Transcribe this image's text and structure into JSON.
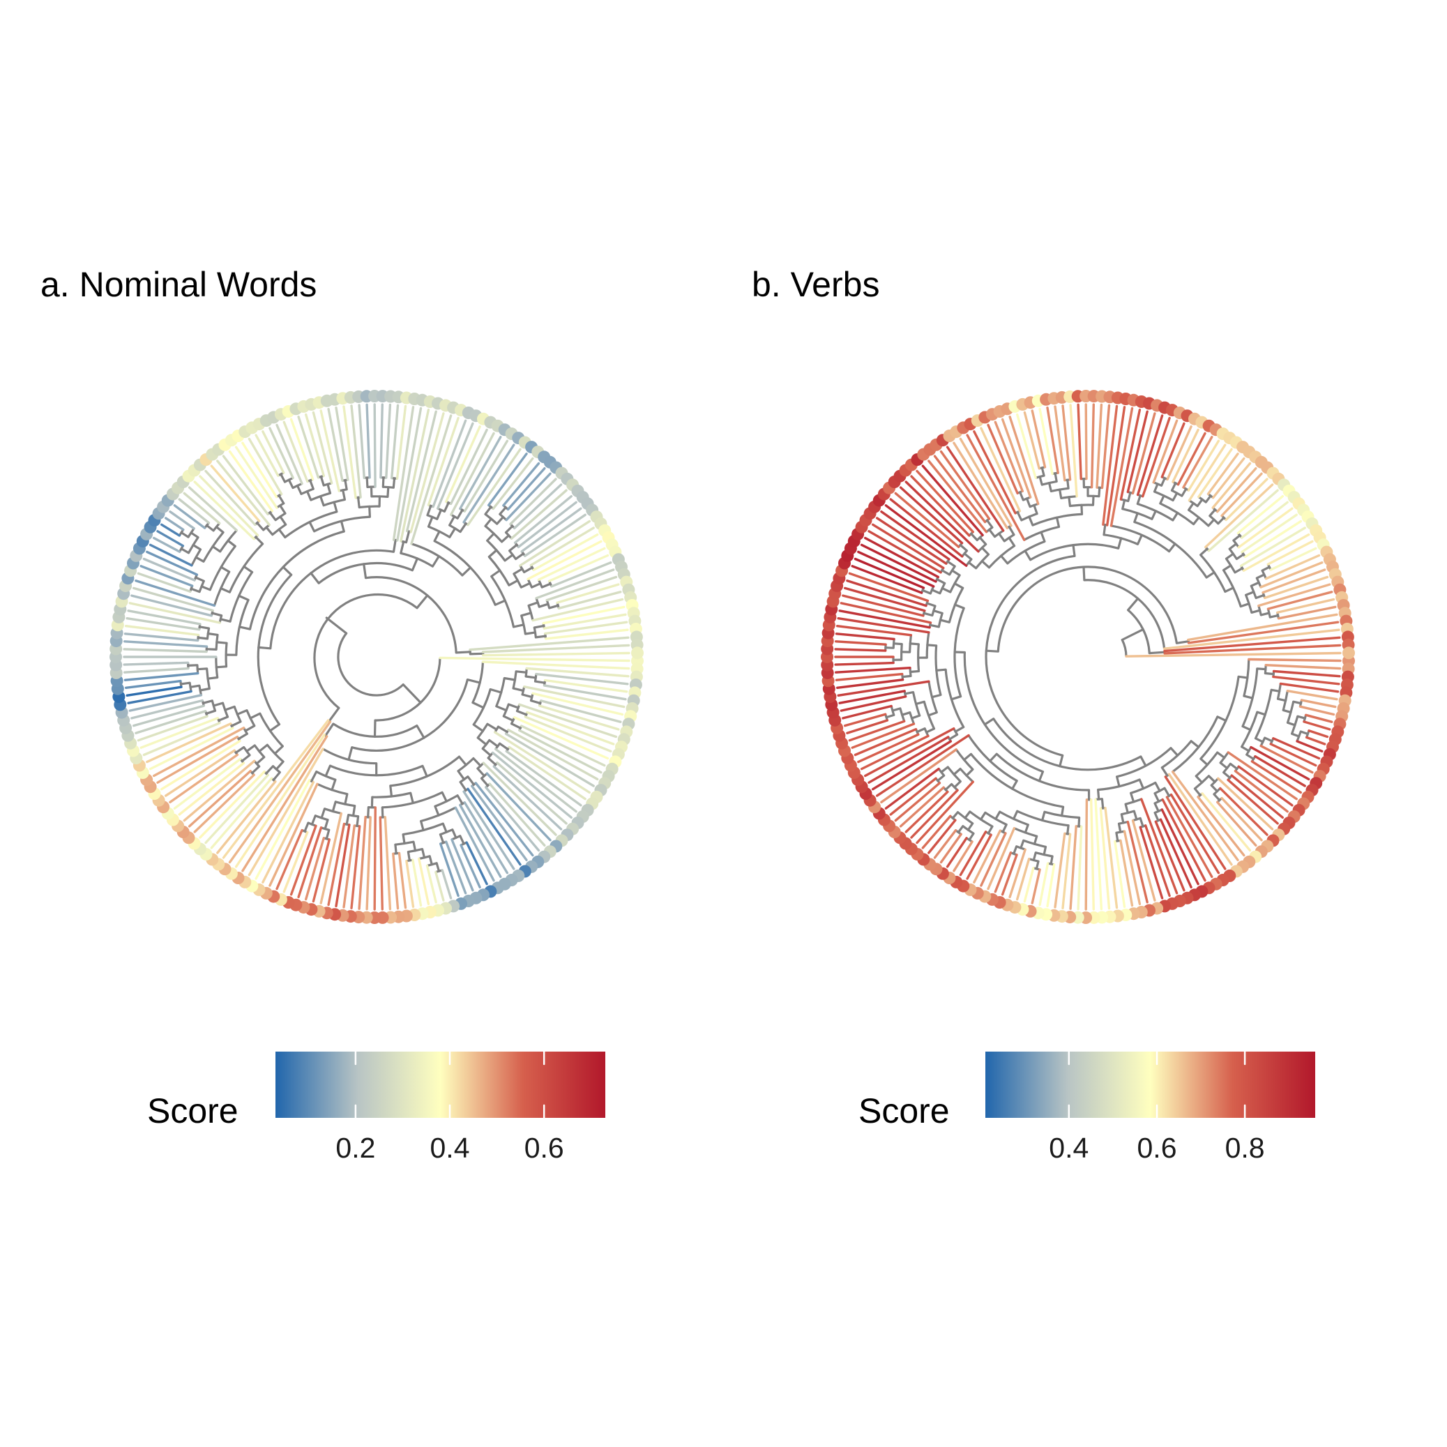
{
  "figure": {
    "background": "#ffffff",
    "branch_color": "#808080"
  },
  "chart_data": [
    {
      "type": "circular-tree",
      "title": "a. Nominal Words",
      "tips": 205,
      "seed": 17,
      "legend": {
        "title": "Score",
        "min": 0.03,
        "max": 0.73,
        "ticks": [
          0.2,
          0.4,
          0.6
        ],
        "tick_labels": [
          "0.2",
          "0.4",
          "0.6"
        ],
        "placement": "bottom"
      },
      "score_profile": [
        [
          0,
          0.38
        ],
        [
          0.08,
          0.4
        ],
        [
          0.14,
          0.22
        ],
        [
          0.18,
          0.06
        ],
        [
          0.22,
          0.55
        ],
        [
          0.28,
          0.7
        ],
        [
          0.35,
          0.5
        ],
        [
          0.42,
          0.62
        ],
        [
          0.47,
          0.1
        ],
        [
          0.52,
          0.35
        ],
        [
          0.58,
          0.12
        ],
        [
          0.63,
          0.45
        ],
        [
          0.7,
          0.4
        ],
        [
          0.74,
          0.3
        ],
        [
          0.8,
          0.38
        ],
        [
          0.86,
          0.24
        ],
        [
          0.92,
          0.4
        ],
        [
          1.0,
          0.38
        ]
      ],
      "color_stops": [
        "#2166ac",
        "#b8c4c4",
        "#ffffbf",
        "#d6604d",
        "#b2182b"
      ]
    },
    {
      "type": "circular-tree",
      "title": "b. Verbs",
      "tips": 205,
      "seed": 29,
      "legend": {
        "title": "Score",
        "min": 0.21,
        "max": 0.96,
        "ticks": [
          0.4,
          0.6,
          0.8
        ],
        "tick_labels": [
          "0.4",
          "0.6",
          "0.8"
        ],
        "placement": "bottom"
      },
      "score_profile": [
        [
          0,
          0.7
        ],
        [
          0.08,
          0.8
        ],
        [
          0.14,
          0.6
        ],
        [
          0.18,
          0.85
        ],
        [
          0.23,
          0.55
        ],
        [
          0.28,
          0.55
        ],
        [
          0.33,
          0.72
        ],
        [
          0.4,
          0.78
        ],
        [
          0.46,
          0.8
        ],
        [
          0.52,
          0.85
        ],
        [
          0.58,
          0.88
        ],
        [
          0.64,
          0.8
        ],
        [
          0.7,
          0.55
        ],
        [
          0.76,
          0.68
        ],
        [
          0.8,
          0.75
        ],
        [
          0.85,
          0.55
        ],
        [
          0.9,
          0.5
        ],
        [
          0.95,
          0.62
        ],
        [
          1.0,
          0.7
        ]
      ],
      "color_stops": [
        "#2166ac",
        "#b8c4c4",
        "#ffffbf",
        "#d6604d",
        "#b2182b"
      ]
    }
  ]
}
